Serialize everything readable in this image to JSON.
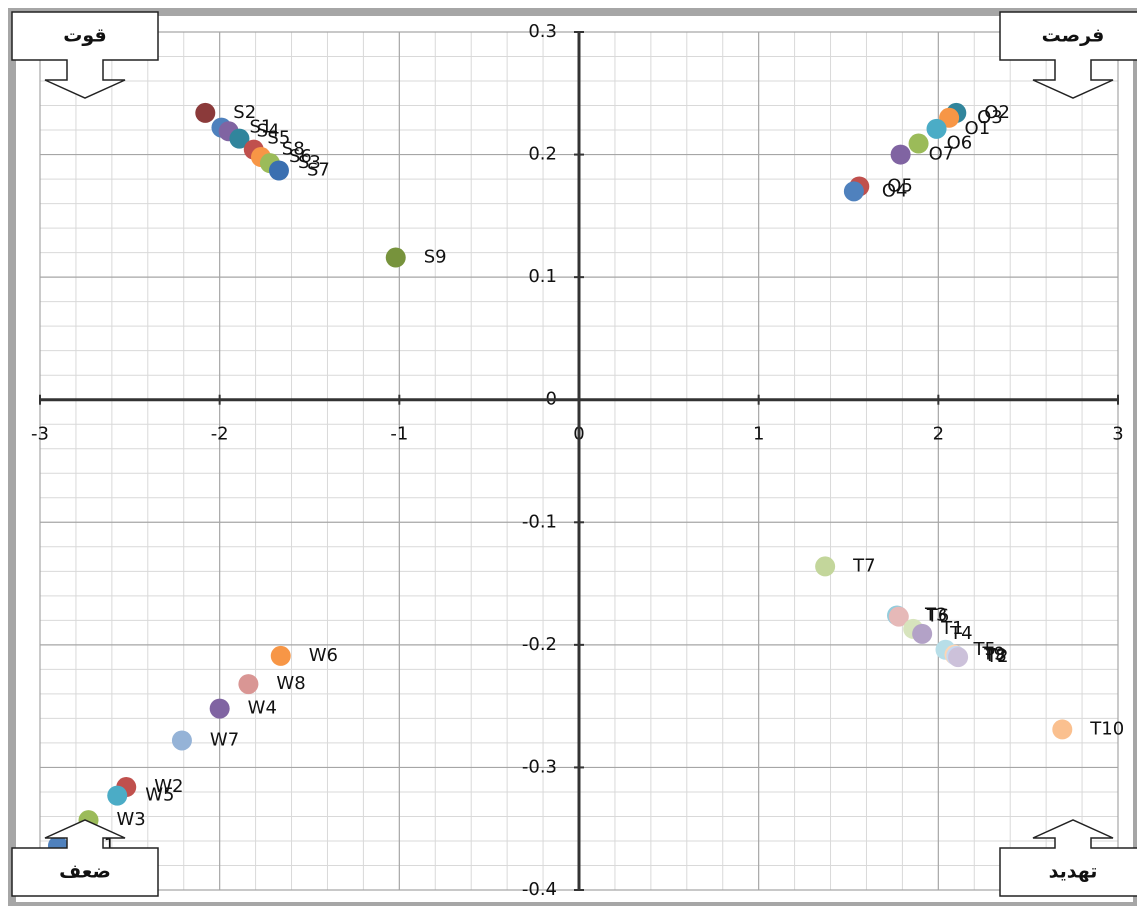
{
  "chart_data": {
    "type": "scatter",
    "xlim": [
      -3,
      3
    ],
    "ylim": [
      -0.4,
      0.3
    ],
    "xticks": [
      -3,
      -2,
      -1,
      0,
      1,
      2,
      3
    ],
    "yticks": [
      -0.4,
      -0.3,
      -0.2,
      -0.1,
      0,
      0.1,
      0.2,
      0.3
    ],
    "grid": true,
    "series": [
      {
        "points": [
          {
            "label": "S2",
            "x": -2.08,
            "y": 0.234,
            "color": "#8b3a3a"
          },
          {
            "label": "S1",
            "x": -1.99,
            "y": 0.222,
            "color": "#4f81bd"
          },
          {
            "label": "S4",
            "x": -1.95,
            "y": 0.219,
            "color": "#8064a2"
          },
          {
            "label": "S5",
            "x": -1.89,
            "y": 0.213,
            "color": "#31859c"
          },
          {
            "label": "S8",
            "x": -1.81,
            "y": 0.204,
            "color": "#c0504d"
          },
          {
            "label": "S6",
            "x": -1.77,
            "y": 0.198,
            "color": "#f79646"
          },
          {
            "label": "S3",
            "x": -1.72,
            "y": 0.193,
            "color": "#9bbb59"
          },
          {
            "label": "S7",
            "x": -1.67,
            "y": 0.187,
            "color": "#3a6fb0"
          },
          {
            "label": "S9",
            "x": -1.02,
            "y": 0.116,
            "color": "#77933c"
          }
        ]
      },
      {
        "points": [
          {
            "label": "O2",
            "x": 2.1,
            "y": 0.234,
            "color": "#31859c"
          },
          {
            "label": "O3",
            "x": 2.06,
            "y": 0.23,
            "color": "#f79646"
          },
          {
            "label": "O1",
            "x": 1.99,
            "y": 0.221,
            "color": "#4bacc6"
          },
          {
            "label": "O6",
            "x": 1.89,
            "y": 0.209,
            "color": "#9bbb59"
          },
          {
            "label": "O7",
            "x": 1.79,
            "y": 0.2,
            "color": "#8064a2"
          },
          {
            "label": "O5",
            "x": 1.56,
            "y": 0.174,
            "color": "#c0504d"
          },
          {
            "label": "O4",
            "x": 1.53,
            "y": 0.17,
            "color": "#4f81bd"
          }
        ]
      },
      {
        "points": [
          {
            "label": "T7",
            "x": 1.37,
            "y": -0.136,
            "color": "#c3d69b"
          },
          {
            "label": "T3",
            "x": 1.77,
            "y": -0.176,
            "color": "#93cddd"
          },
          {
            "label": "T6",
            "x": 1.78,
            "y": -0.177,
            "color": "#e6b9b8"
          },
          {
            "label": "T1",
            "x": 1.86,
            "y": -0.187,
            "color": "#d7e4bd"
          },
          {
            "label": "T4",
            "x": 1.91,
            "y": -0.191,
            "color": "#b3a2c7"
          },
          {
            "label": "T5",
            "x": 2.04,
            "y": -0.204,
            "color": "#b7dee8"
          },
          {
            "label": "T9",
            "x": 2.09,
            "y": -0.208,
            "color": "#fcd5b5"
          },
          {
            "label": "T8",
            "x": 2.1,
            "y": -0.209,
            "color": "#c6d9f1"
          },
          {
            "label": "T2",
            "x": 2.11,
            "y": -0.21,
            "color": "#ccc1da"
          },
          {
            "label": "T10",
            "x": 2.69,
            "y": -0.269,
            "color": "#fac08f"
          }
        ]
      },
      {
        "points": [
          {
            "label": "W6",
            "x": -1.66,
            "y": -0.209,
            "color": "#f79646"
          },
          {
            "label": "W8",
            "x": -1.84,
            "y": -0.232,
            "color": "#d99694"
          },
          {
            "label": "W4",
            "x": -2.0,
            "y": -0.252,
            "color": "#8064a2"
          },
          {
            "label": "W7",
            "x": -2.21,
            "y": -0.278,
            "color": "#95b3d7"
          },
          {
            "label": "W2",
            "x": -2.52,
            "y": -0.316,
            "color": "#c0504d"
          },
          {
            "label": "W5",
            "x": -2.57,
            "y": -0.323,
            "color": "#4bacc6"
          },
          {
            "label": "W3",
            "x": -2.73,
            "y": -0.343,
            "color": "#9bbb59"
          },
          {
            "label": "W1",
            "x": -2.9,
            "y": -0.364,
            "color": "#4f81bd"
          }
        ]
      }
    ],
    "annotations": [
      {
        "text": "قوت",
        "corner": "top-left"
      },
      {
        "text": "فرصت",
        "corner": "top-right"
      },
      {
        "text": "ضعف",
        "corner": "bottom-left"
      },
      {
        "text": "تهدید",
        "corner": "bottom-right"
      }
    ]
  }
}
